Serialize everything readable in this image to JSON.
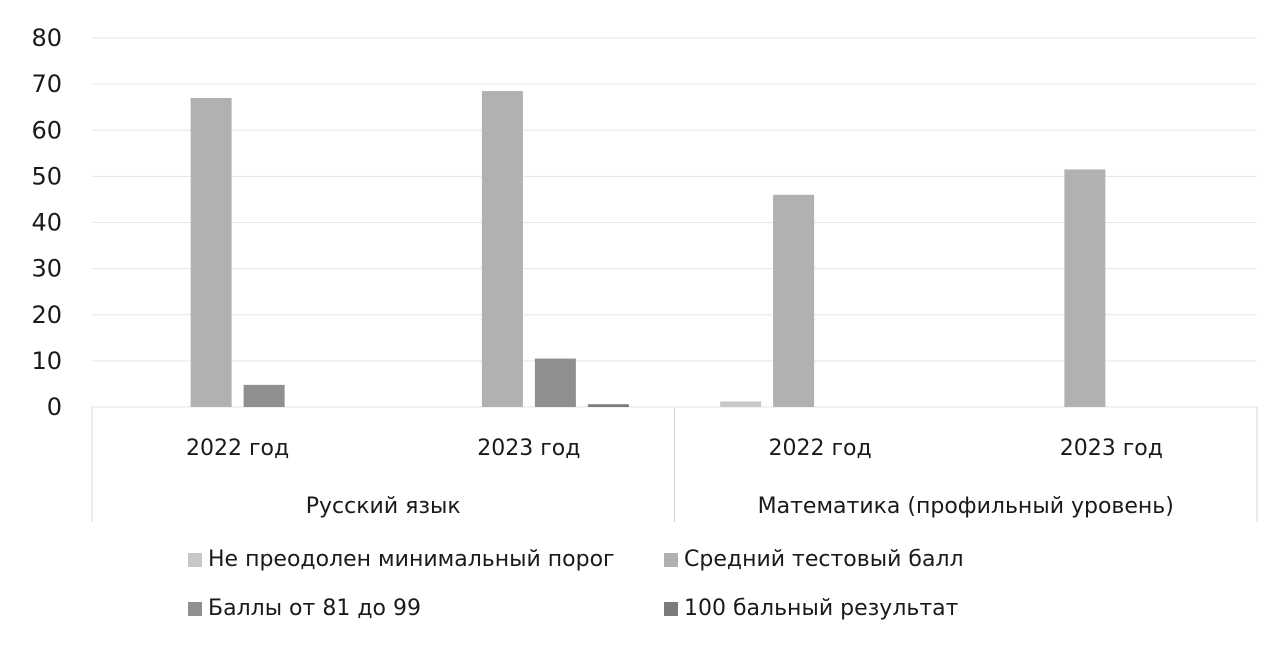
{
  "chart_data": {
    "type": "bar",
    "title": "",
    "xlabel": "",
    "ylabel": "",
    "ylim": [
      0,
      80
    ],
    "yticks": [
      0,
      10,
      20,
      30,
      40,
      50,
      60,
      70,
      80
    ],
    "grid": true,
    "legend_position": "bottom",
    "groups": [
      {
        "label": "Русский язык",
        "categories": [
          "2022 год",
          "2023 год"
        ]
      },
      {
        "label": "Математика (профильный уровень)",
        "categories": [
          "2022 год",
          "2023 год"
        ]
      }
    ],
    "categories": [
      "2022 год",
      "2023 год",
      "2022 год",
      "2023 год"
    ],
    "series": [
      {
        "name": "Не преодолен минимальный порог",
        "color": "#c8c8c8",
        "values": [
          0,
          0,
          1.2,
          0
        ]
      },
      {
        "name": "Средний тестовый балл",
        "color": "#b1b1b1",
        "values": [
          67,
          68.5,
          46,
          51.5
        ]
      },
      {
        "name": "Баллы от 81 до 99",
        "color": "#8f8f8f",
        "values": [
          4.8,
          10.5,
          0,
          0
        ]
      },
      {
        "name": "100 бальный результат",
        "color": "#7b7b7b",
        "values": [
          0,
          0.6,
          0,
          0
        ]
      }
    ]
  }
}
